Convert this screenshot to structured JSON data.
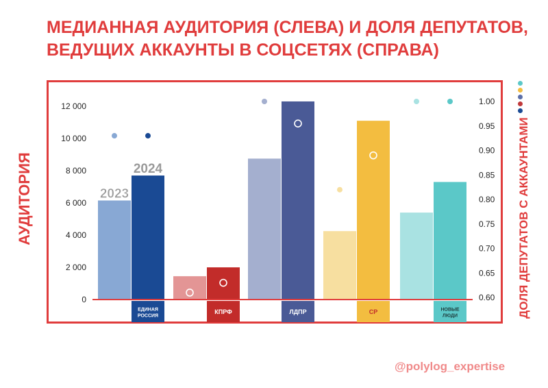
{
  "title": {
    "line1": "МЕДИАННАЯ АУДИТОРИЯ (СЛЕВА) И ДОЛЯ ДЕПУТАТОВ,",
    "line2": "ВЕДУЩИХ АККАУНТЫ В СОЦСЕТЯХ (СПРАВА)"
  },
  "watermark": "@polylog_expertise",
  "colors": {
    "accent": "#e03c3c",
    "legend_dots": [
      "#5bc8c8",
      "#f3bd40",
      "#5c6fa8",
      "#c0393b",
      "#1a4a94"
    ]
  },
  "chart_data": {
    "type": "bar",
    "categories": [
      "ЕДИНАЯ РОССИЯ",
      "КПРФ",
      "ЛДПР",
      "СР",
      "НОВЫЕ ЛЮДИ"
    ],
    "series": [
      {
        "name": "2023",
        "values": [
          6150,
          1450,
          8750,
          4250,
          5400
        ],
        "colors": [
          "#88a8d4",
          "#e39595",
          "#a4afcf",
          "#f7dfa0",
          "#a9e2e2"
        ]
      },
      {
        "name": "2024",
        "values": [
          7700,
          2000,
          12300,
          11100,
          7300
        ],
        "colors": [
          "#1a4a94",
          "#c22c2a",
          "#4a5a96",
          "#f3bd40",
          "#5bc8c8"
        ]
      }
    ],
    "share_2023": [
      0.93,
      0.61,
      1.0,
      0.82,
      1.0
    ],
    "share_2024": [
      0.93,
      0.63,
      0.955,
      0.89,
      1.0
    ],
    "ylabel": "АУДИТОРИЯ",
    "y2label": "ДОЛЯ ДЕПУТАТОВ С АККАУНТАМИ",
    "ylim": [
      0,
      12000
    ],
    "y2lim": [
      0.6,
      1.0
    ],
    "yticks": [
      "0",
      "2 000",
      "4 000",
      "6 000",
      "8 000",
      "10 000",
      "12 000"
    ],
    "y2ticks": [
      "0.60",
      "0.65",
      "0.70",
      "0.75",
      "0.80",
      "0.85",
      "0.90",
      "0.95",
      "1.00"
    ],
    "year_labels": [
      "2023",
      "2024"
    ],
    "party_logo_texts": [
      "ЕДИНАЯ РОССИЯ",
      "КПРФ",
      "ЛДПР",
      "СР",
      "НОВЫЕ ЛЮДИ"
    ],
    "grid": false
  }
}
